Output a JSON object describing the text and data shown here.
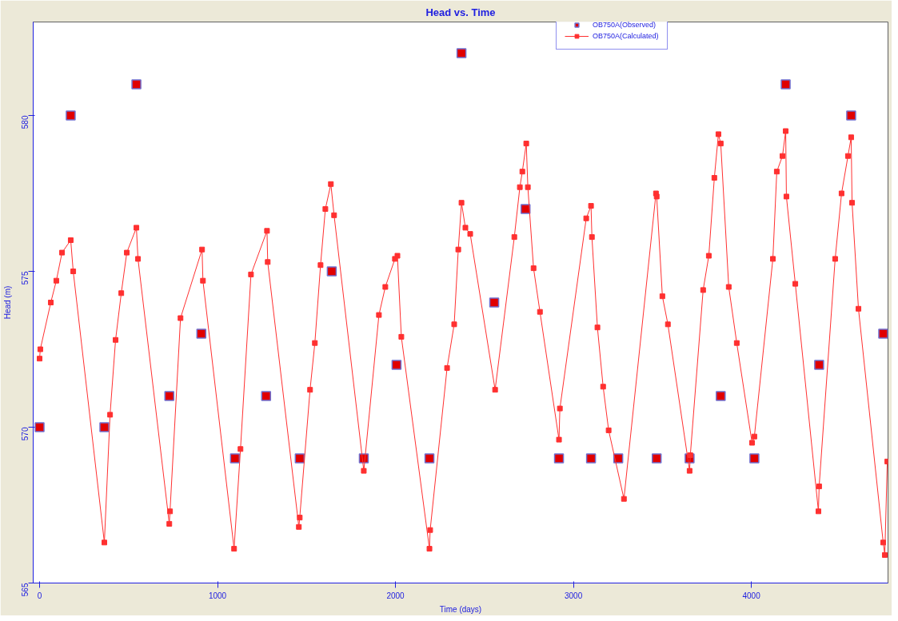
{
  "chart_data": {
    "type": "scatter",
    "title": "Head vs. Time",
    "xlabel": "Time (days)",
    "ylabel": "Head (m)",
    "xlim": [
      -36,
      4768
    ],
    "ylim": [
      565,
      583
    ],
    "xticks": [
      0,
      1000,
      2000,
      3000,
      4000
    ],
    "yticks": [
      565,
      570,
      575,
      580
    ],
    "grid": false,
    "legend": "top right",
    "marker": "square",
    "series": [
      {
        "name": "OB750A(Observed)",
        "color": "#e00000",
        "x": [
          0,
          175,
          544,
          364,
          729,
          909,
          1098,
          1273,
          1462,
          1642,
          1822,
          2006,
          2191,
          2371,
          2555,
          2731,
          2919,
          3099,
          3252,
          3468,
          3653,
          3828,
          4017,
          4193,
          4381,
          4561,
          4741
        ],
        "values": [
          570,
          580,
          581,
          570,
          571,
          573,
          569,
          571,
          569,
          575,
          569,
          572,
          569,
          582,
          574,
          577,
          569,
          569,
          569,
          569,
          569,
          571,
          569,
          581,
          572,
          580,
          573
        ]
      },
      {
        "name": "OB750A(Calculated)",
        "type": "line",
        "color": "#ff3030",
        "line_style": "solid",
        "x": [
          0,
          4,
          63,
          94,
          126,
          175,
          189,
          364,
          396,
          427,
          459,
          490,
          544,
          553,
          729,
          733,
          792,
          913,
          918,
          1093,
          1129,
          1188,
          1278,
          1282,
          1457,
          1462,
          1520,
          1547,
          1579,
          1606,
          1637,
          1655,
          1822,
          1907,
          1943,
          1997,
          2011,
          2033,
          2191,
          2195,
          2290,
          2330,
          2353,
          2371,
          2393,
          2420,
          2560,
          2668,
          2699,
          2713,
          2735,
          2744,
          2776,
          2812,
          2919,
          2924,
          3072,
          3099,
          3104,
          3135,
          3167,
          3198,
          3284,
          3464,
          3468,
          3500,
          3531,
          3653,
          3657,
          3729,
          3761,
          3792,
          3815,
          3828,
          3873,
          3918,
          4004,
          4017,
          4121,
          4143,
          4175,
          4193,
          4197,
          4247,
          4377,
          4381,
          4471,
          4507,
          4543,
          4561,
          4566,
          4602,
          4741,
          4750,
          4764
        ],
        "values": [
          572.2,
          572.5,
          574.0,
          574.7,
          575.6,
          576.0,
          575.0,
          566.3,
          570.4,
          572.8,
          574.3,
          575.6,
          576.4,
          575.4,
          566.9,
          567.3,
          573.5,
          575.7,
          574.7,
          566.1,
          569.3,
          574.9,
          576.3,
          575.3,
          566.8,
          567.1,
          571.2,
          572.7,
          575.2,
          577.0,
          577.8,
          576.8,
          568.6,
          573.6,
          574.5,
          575.4,
          575.5,
          572.9,
          566.1,
          566.7,
          571.9,
          573.3,
          575.7,
          577.2,
          576.4,
          576.2,
          571.2,
          576.1,
          577.7,
          578.2,
          579.1,
          577.7,
          575.1,
          573.7,
          569.6,
          570.6,
          576.7,
          577.1,
          576.1,
          573.2,
          571.3,
          569.9,
          567.7,
          577.5,
          577.4,
          574.2,
          573.3,
          568.6,
          569.1,
          574.4,
          575.5,
          578.0,
          579.4,
          579.1,
          574.5,
          572.7,
          569.5,
          569.7,
          575.4,
          578.2,
          578.7,
          579.5,
          577.4,
          574.6,
          567.3,
          568.1,
          575.4,
          577.5,
          578.7,
          579.3,
          577.2,
          573.8,
          566.3,
          565.9,
          568.9
        ]
      }
    ]
  }
}
